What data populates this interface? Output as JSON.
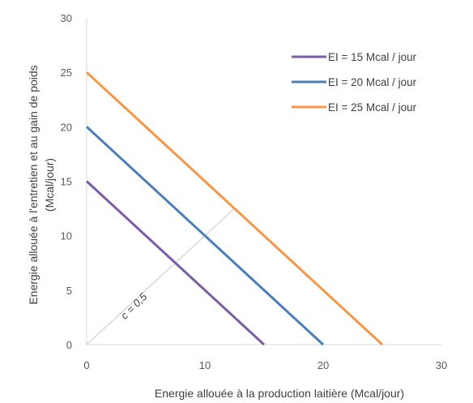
{
  "chart_data": {
    "type": "line",
    "title": "",
    "xlabel": "Energie allouée à la production laitière (Mcal/jour)",
    "ylabel_lines": [
      "Energie allouée à l'entretien et au gain de poids",
      "(Mcal/jour)"
    ],
    "xlim": [
      0,
      30
    ],
    "ylim": [
      0,
      30
    ],
    "x_ticks": [
      0,
      10,
      20,
      30
    ],
    "y_ticks": [
      0,
      5,
      10,
      15,
      20,
      25,
      30
    ],
    "grid": false,
    "legend_position": "top-right",
    "series": [
      {
        "name": "EI = 15 Mcal / jour",
        "color": "#7d5ba6",
        "x": [
          0,
          15
        ],
        "y": [
          15,
          0
        ]
      },
      {
        "name": "EI = 20 Mcal / jour",
        "color": "#4a7ebb",
        "x": [
          0,
          20
        ],
        "y": [
          20,
          0
        ]
      },
      {
        "name": "EI = 25 Mcal / jour",
        "color": "#f79646",
        "x": [
          0,
          25
        ],
        "y": [
          25,
          0
        ]
      }
    ],
    "reference_line": {
      "label": "c = 0,5",
      "color": "#c8c8c8",
      "x": [
        0,
        12.5
      ],
      "y": [
        0,
        12.5
      ]
    }
  }
}
